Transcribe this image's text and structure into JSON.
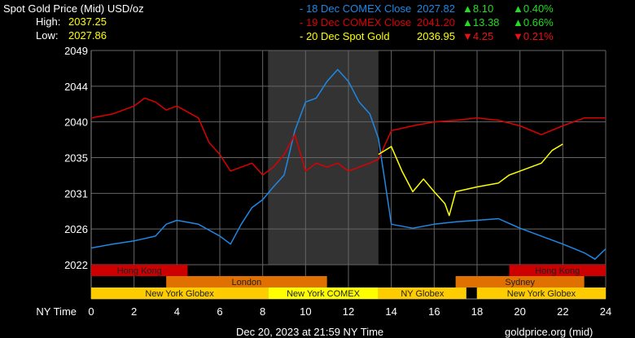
{
  "header": {
    "title": "Spot Gold Price (Mid) USD/oz",
    "high_label": "High:",
    "high": "2037.25",
    "low_label": "Low:",
    "low": "2027.86"
  },
  "legend": [
    {
      "name": "- 18 Dec COMEX Close",
      "price": "2027.82",
      "change": "▲8.10",
      "pct": "▲0.40%",
      "color": "#1e88e5",
      "change_color": "#22dd22"
    },
    {
      "name": "- 19 Dec COMEX Close",
      "price": "2041.20",
      "change": "▲13.38",
      "pct": "▲0.66%",
      "color": "#dd0000",
      "change_color": "#22dd22"
    },
    {
      "name": "- 20 Dec Spot Gold",
      "price": "2036.95",
      "change": "▼4.25",
      "pct": "▼0.21%",
      "color": "#ffff00",
      "change_color": "#ee1111"
    }
  ],
  "footer": {
    "timestamp": "Dec 20, 2023 at 21:59 NY Time",
    "source": "goldprice.org (mid)"
  },
  "chart_data": {
    "type": "line",
    "xlabel": "NY Time",
    "xlim": [
      0,
      24
    ],
    "ylim": [
      2022,
      2049
    ],
    "xticks": [
      "0",
      "2",
      "4",
      "6",
      "8",
      "10",
      "12",
      "14",
      "16",
      "18",
      "20",
      "22",
      "24"
    ],
    "yticks": [
      "2049",
      "2044",
      "2040",
      "2035",
      "2031",
      "2026",
      "2022"
    ],
    "grid": true,
    "highlight": {
      "from": 8.25,
      "to": 13.4,
      "color": "#333333"
    },
    "sessions": [
      {
        "label": "Hong Kong",
        "row": 0,
        "from": 0,
        "to": 4.5,
        "color": "#cc0000"
      },
      {
        "label": "Hong Kong",
        "row": 0,
        "from": 19.5,
        "to": 24,
        "color": "#cc0000"
      },
      {
        "label": "London",
        "row": 1,
        "from": 3.5,
        "to": 11,
        "color": "#e07000"
      },
      {
        "label": "Sydney",
        "row": 1,
        "from": 17,
        "to": 23,
        "color": "#e07000"
      },
      {
        "label": "New York Globex",
        "row": 2,
        "from": 0,
        "to": 8.25,
        "color": "#ffcc00"
      },
      {
        "label": "New York COMEX",
        "row": 2,
        "from": 8.25,
        "to": 13.4,
        "color": "#ffff00"
      },
      {
        "label": "NY Globex",
        "row": 2,
        "from": 13.4,
        "to": 17.5,
        "color": "#ffcc00"
      },
      {
        "label": "New York Globex",
        "row": 2,
        "from": 18,
        "to": 24,
        "color": "#ffcc00"
      }
    ],
    "series": [
      {
        "name": "18 Dec COMEX Close",
        "color": "#1e88e5",
        "x": [
          0,
          1,
          2,
          3,
          3.5,
          4,
          5,
          6,
          6.5,
          7,
          7.5,
          8,
          8.5,
          9,
          9.5,
          10,
          10.5,
          11,
          11.5,
          12,
          12.5,
          13,
          13.4,
          14,
          15,
          16,
          17,
          18,
          19,
          20,
          21,
          22,
          23,
          23.5,
          24
        ],
        "y": [
          2024.1,
          2024.6,
          2025,
          2025.6,
          2027.1,
          2027.6,
          2027.1,
          2025.6,
          2024.6,
          2027.1,
          2029.2,
          2030.2,
          2031.8,
          2033.3,
          2038.9,
          2042.5,
          2043,
          2045.1,
          2046.6,
          2045.1,
          2042.5,
          2041,
          2037.9,
          2027.1,
          2026.6,
          2027.1,
          2027.4,
          2027.6,
          2027.8,
          2026.6,
          2025.6,
          2024.6,
          2023.5,
          2022.7,
          2024
        ]
      },
      {
        "name": "19 Dec COMEX Close",
        "color": "#dd0000",
        "x": [
          0,
          1,
          2,
          2.5,
          3,
          3.5,
          4,
          5,
          5.5,
          6,
          6.5,
          7,
          7.5,
          8,
          8.5,
          9,
          9.5,
          10,
          10.5,
          11,
          11.5,
          12,
          13,
          13.4,
          14,
          15,
          16,
          17,
          18,
          19,
          20,
          21,
          22,
          23,
          24
        ],
        "y": [
          2040.5,
          2041,
          2042,
          2043,
          2042.5,
          2041.5,
          2042,
          2040.5,
          2037.4,
          2035.9,
          2033.8,
          2034.3,
          2034.8,
          2033.3,
          2034.3,
          2035.9,
          2038.4,
          2033.8,
          2034.8,
          2034.3,
          2034.8,
          2033.8,
          2034.8,
          2035.3,
          2038.9,
          2039.5,
          2040,
          2040.2,
          2040.5,
          2040.2,
          2039.5,
          2038.4,
          2039.5,
          2040.5,
          2040.5
        ]
      },
      {
        "name": "20 Dec Spot Gold",
        "color": "#ffff00",
        "x": [
          13.4,
          14,
          14.5,
          15,
          15.5,
          16,
          16.5,
          16.7,
          17,
          18,
          19,
          19.5,
          20,
          21,
          21.5,
          22
        ],
        "y": [
          2035.9,
          2036.9,
          2033.8,
          2031.2,
          2032.8,
          2031.2,
          2029.7,
          2028.2,
          2031.2,
          2031.8,
          2032.3,
          2033.3,
          2033.8,
          2034.8,
          2036.4,
          2037.2
        ]
      }
    ]
  }
}
